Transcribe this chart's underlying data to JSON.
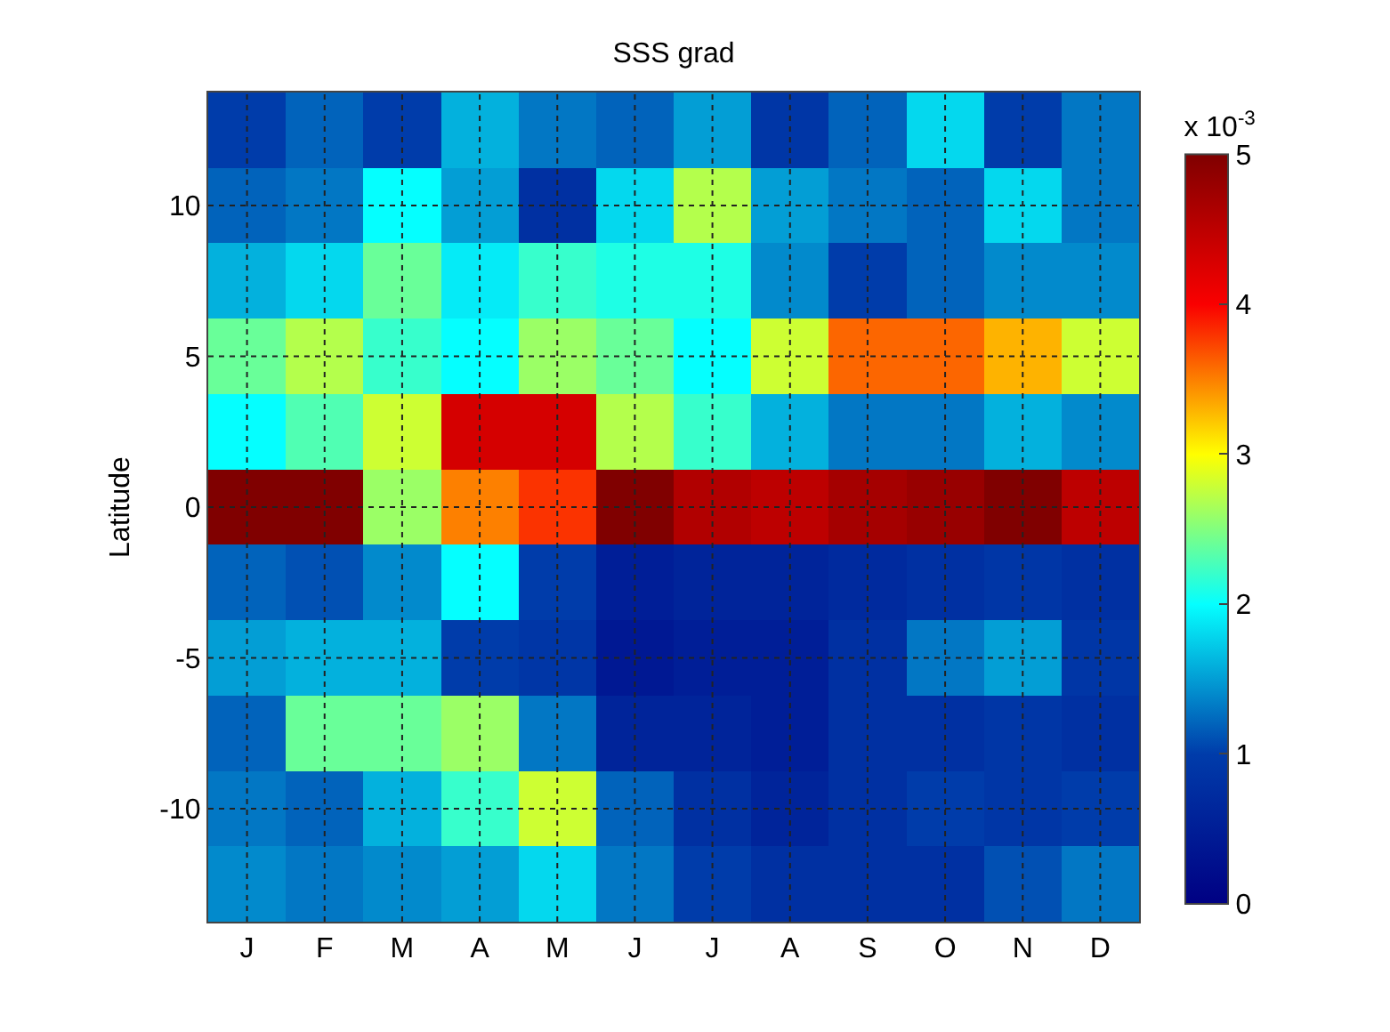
{
  "chart_data": {
    "type": "heatmap",
    "title": "SSS grad",
    "ylabel": "Latitude",
    "clabel": "x 10$^{-3}$",
    "categories": [
      "J",
      "F",
      "M",
      "A",
      "M",
      "J",
      "J",
      "A",
      "S",
      "O",
      "N",
      "D"
    ],
    "y_categories": [
      null,
      "10",
      null,
      "5",
      null,
      "0",
      null,
      "-5",
      null,
      "-10",
      null
    ],
    "cells": [
      [
        1.0,
        1.2,
        1.0,
        1.6,
        1.3,
        1.2,
        1.5,
        0.9,
        1.2,
        1.8,
        1.0,
        1.3
      ],
      [
        1.2,
        1.3,
        2.0,
        1.5,
        0.8,
        1.8,
        2.7,
        1.5,
        1.3,
        1.2,
        1.8,
        1.3
      ],
      [
        1.6,
        1.8,
        2.4,
        1.9,
        2.2,
        2.1,
        2.1,
        1.4,
        1.0,
        1.2,
        1.4,
        1.4
      ],
      [
        2.4,
        2.7,
        2.2,
        2.0,
        2.6,
        2.4,
        2.0,
        2.8,
        3.6,
        3.6,
        3.3,
        2.8
      ],
      [
        2.0,
        2.3,
        2.8,
        4.3,
        4.3,
        2.7,
        2.2,
        1.6,
        1.3,
        1.3,
        1.6,
        1.4
      ],
      [
        5.0,
        5.0,
        2.6,
        3.5,
        3.8,
        5.0,
        4.6,
        4.5,
        4.7,
        4.8,
        5.0,
        4.5
      ],
      [
        1.2,
        1.1,
        1.4,
        2.0,
        1.0,
        0.5,
        0.6,
        0.6,
        0.7,
        0.8,
        0.9,
        0.8
      ],
      [
        1.5,
        1.6,
        1.6,
        1.0,
        0.9,
        0.4,
        0.5,
        0.5,
        0.8,
        1.3,
        1.5,
        0.9
      ],
      [
        1.2,
        2.4,
        2.4,
        2.6,
        1.3,
        0.6,
        0.6,
        0.5,
        0.8,
        0.8,
        0.9,
        0.8
      ],
      [
        1.3,
        1.2,
        1.6,
        2.2,
        2.8,
        1.2,
        0.8,
        0.6,
        0.8,
        1.0,
        0.9,
        1.0
      ],
      [
        1.4,
        1.3,
        1.4,
        1.5,
        1.8,
        1.3,
        1.0,
        0.8,
        0.8,
        0.8,
        1.1,
        1.3
      ]
    ],
    "clim": [
      0,
      5
    ],
    "cticks": [
      0,
      1,
      2,
      3,
      4,
      5
    ],
    "grid": true
  }
}
